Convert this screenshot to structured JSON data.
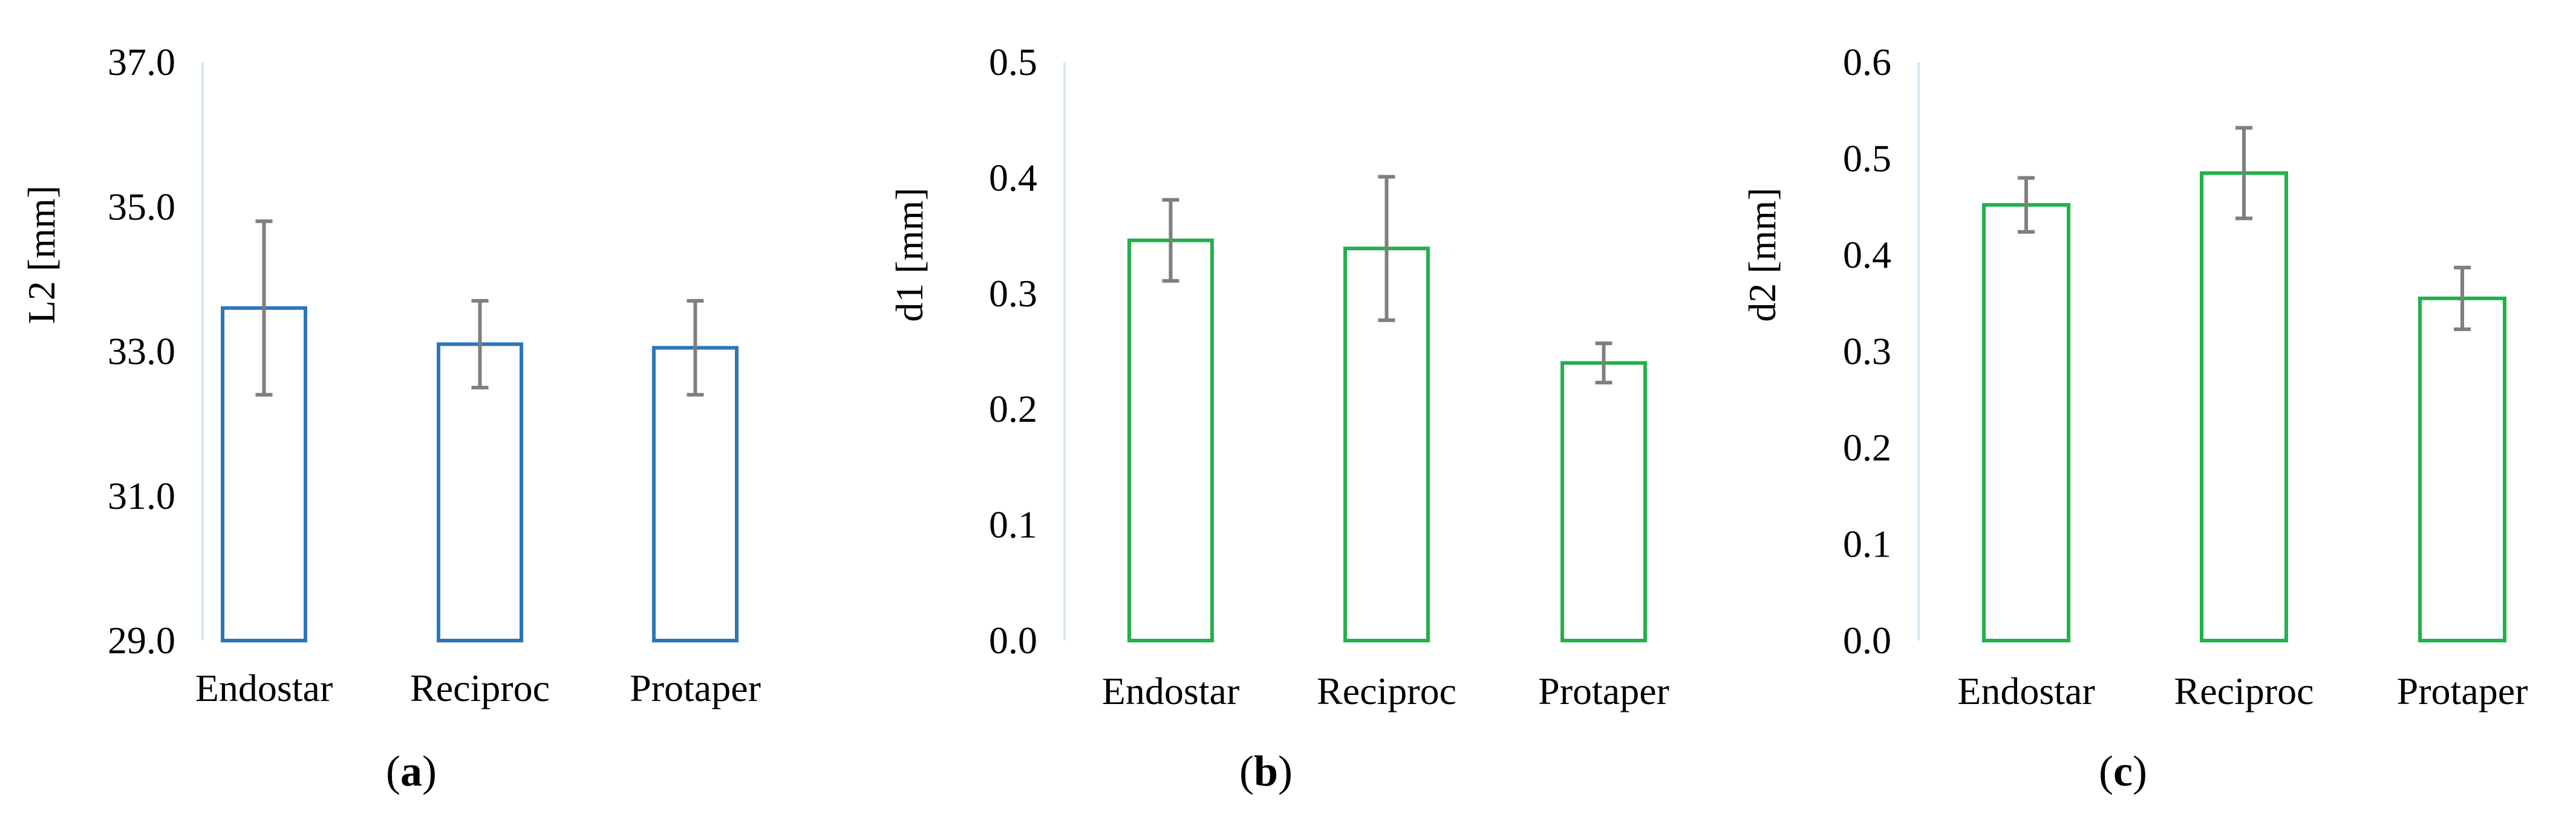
{
  "chart_data": [
    {
      "type": "bar",
      "panel": "a",
      "caption_open": "(",
      "caption_letter": "a",
      "caption_close": ")",
      "ylabel": "L2 [mm]",
      "ylim": [
        29.0,
        37.0
      ],
      "yticks": [
        "29.0",
        "31.0",
        "33.0",
        "35.0",
        "37.0"
      ],
      "categories": [
        "Endostar",
        "Reciproc",
        "Protaper"
      ],
      "values": [
        33.6,
        33.1,
        33.05
      ],
      "errors": [
        1.2,
        0.6,
        0.65
      ],
      "color": "#2e75b6"
    },
    {
      "type": "bar",
      "panel": "b",
      "caption_open": "(",
      "caption_letter": "b",
      "caption_close": ")",
      "ylabel": "d1 [mm]",
      "ylim": [
        0.0,
        0.5
      ],
      "yticks": [
        "0.0",
        "0.1",
        "0.2",
        "0.3",
        "0.4",
        "0.5"
      ],
      "categories": [
        "Endostar",
        "Reciproc",
        "Protaper"
      ],
      "values": [
        0.346,
        0.339,
        0.24
      ],
      "errors": [
        0.035,
        0.062,
        0.017
      ],
      "color": "#21b14b"
    },
    {
      "type": "bar",
      "panel": "c",
      "caption_open": "(",
      "caption_letter": "c",
      "caption_close": ")",
      "ylabel": "d2 [mm]",
      "ylim": [
        0.0,
        0.6
      ],
      "yticks": [
        "0.0",
        "0.1",
        "0.2",
        "0.3",
        "0.4",
        "0.5",
        "0.6"
      ],
      "categories": [
        "Endostar",
        "Reciproc",
        "Protaper"
      ],
      "values": [
        0.452,
        0.485,
        0.355
      ],
      "errors": [
        0.028,
        0.047,
        0.032
      ],
      "color": "#21b14b"
    }
  ],
  "style": {
    "axis_line_color": "#d6e6f2",
    "error_bar_color": "#7f7f7f"
  }
}
